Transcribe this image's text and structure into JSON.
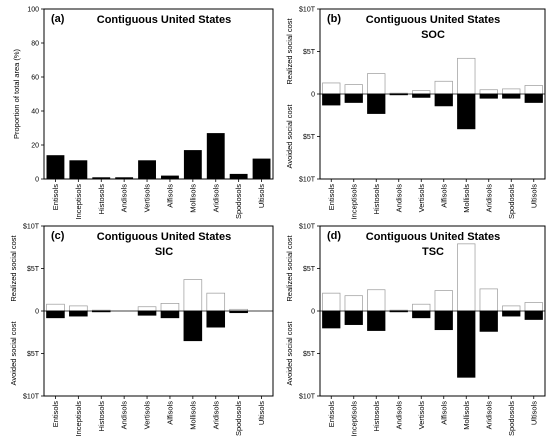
{
  "categories": [
    "Entisols",
    "Inceptisols",
    "Histosols",
    "Andisols",
    "Vertisols",
    "Alfisols",
    "Mollisols",
    "Aridisols",
    "Spodosols",
    "Ultisols"
  ],
  "chart_data": [
    {
      "panel": "(a)",
      "type": "bar",
      "title": "Contiguous United States",
      "subtitle": "",
      "ylabel": "Proportion of total area (%)",
      "ylim": [
        0,
        100
      ],
      "yticks": [
        "0",
        "20",
        "40",
        "60",
        "80",
        "100"
      ],
      "values": [
        14,
        11,
        1,
        1,
        11,
        2,
        17,
        27,
        3,
        12
      ],
      "colors": {
        "bar": "#000000"
      }
    },
    {
      "panel": "(b)",
      "type": "bar",
      "title": "Contiguous United States",
      "subtitle": "SOC",
      "ylabel_top": "Realized social cost",
      "ylabel_bottom": "Avoided social cost",
      "ylim": [
        -10,
        10
      ],
      "yticks": [
        "$10T",
        "$5T",
        "0",
        "$5T",
        "$10T"
      ],
      "series": [
        {
          "name": "",
          "color": "#ffffff",
          "values": [
            1.3,
            1.1,
            2.4,
            0.1,
            0.4,
            1.5,
            4.2,
            0.5,
            0.6,
            1.0
          ]
        },
        {
          "name": "",
          "color": "#000000",
          "values": [
            -1.3,
            -1.0,
            -2.3,
            -0.1,
            -0.4,
            -1.4,
            -4.1,
            -0.5,
            -0.5,
            -1.0
          ]
        }
      ]
    },
    {
      "panel": "(c)",
      "type": "bar",
      "title": "Contiguous United States",
      "subtitle": "SIC",
      "ylabel_top": "Realized social cost",
      "ylabel_bottom": "Avoided social cost",
      "ylim": [
        -10,
        10
      ],
      "yticks": [
        "$10T",
        "$5T",
        "0",
        "$5T",
        "$10T"
      ],
      "series": [
        {
          "name": "",
          "color": "#ffffff",
          "values": [
            0.8,
            0.6,
            0.1,
            0.0,
            0.5,
            0.9,
            3.7,
            2.1,
            0.2,
            0.0
          ]
        },
        {
          "name": "",
          "color": "#000000",
          "values": [
            -0.8,
            -0.6,
            -0.1,
            0.0,
            -0.5,
            -0.8,
            -3.5,
            -1.9,
            -0.2,
            0.0
          ]
        }
      ]
    },
    {
      "panel": "(d)",
      "type": "bar",
      "title": "Contiguous United States",
      "subtitle": "TSC",
      "ylabel_top": "Realized social cost",
      "ylabel_bottom": "Avoided social cost",
      "ylim": [
        -10,
        10
      ],
      "yticks": [
        "$10T",
        "$5T",
        "0",
        "$5T",
        "$10T"
      ],
      "series": [
        {
          "name": "",
          "color": "#ffffff",
          "values": [
            2.1,
            1.8,
            2.5,
            0.1,
            0.8,
            2.4,
            7.9,
            2.6,
            0.6,
            1.0
          ]
        },
        {
          "name": "",
          "color": "#000000",
          "values": [
            -2.0,
            -1.6,
            -2.3,
            -0.1,
            -0.8,
            -2.2,
            -7.8,
            -2.4,
            -0.6,
            -1.0
          ]
        }
      ]
    }
  ]
}
